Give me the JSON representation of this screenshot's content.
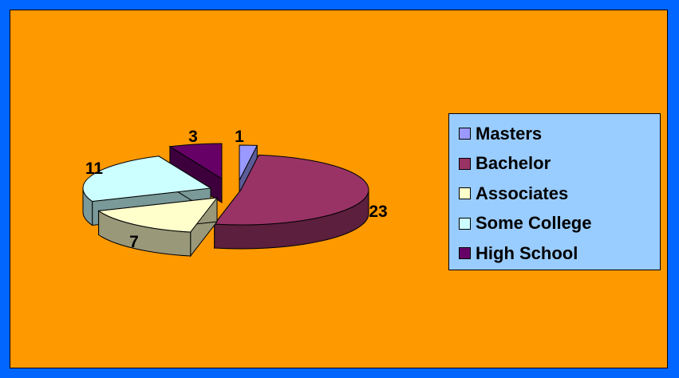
{
  "chart_data": {
    "type": "pie",
    "title": "",
    "style": "3d-exploded",
    "slices": [
      {
        "label": "Masters",
        "value": 1,
        "color": "#9999ff",
        "side_color": "#5c5c99"
      },
      {
        "label": "Bachelor",
        "value": 23,
        "color": "#993366",
        "side_color": "#5c1f3d"
      },
      {
        "label": "Associates",
        "value": 7,
        "color": "#ffffcc",
        "side_color": "#99997a"
      },
      {
        "label": "Some College",
        "value": 11,
        "color": "#ccffff",
        "side_color": "#7a9999"
      },
      {
        "label": "High School",
        "value": 3,
        "color": "#660066",
        "side_color": "#3d003d"
      }
    ],
    "legend_position": "right",
    "data_labels": true
  },
  "colors": {
    "frame": "#0066ff",
    "background": "#ff9900",
    "legend_background": "#99ccff"
  }
}
